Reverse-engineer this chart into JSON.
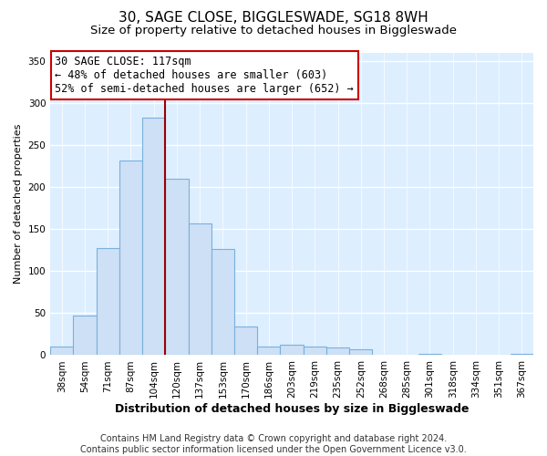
{
  "title": "30, SAGE CLOSE, BIGGLESWADE, SG18 8WH",
  "subtitle": "Size of property relative to detached houses in Biggleswade",
  "xlabel": "Distribution of detached houses by size in Biggleswade",
  "ylabel": "Number of detached properties",
  "footer_line1": "Contains HM Land Registry data © Crown copyright and database right 2024.",
  "footer_line2": "Contains public sector information licensed under the Open Government Licence v3.0.",
  "bin_labels": [
    "38sqm",
    "54sqm",
    "71sqm",
    "87sqm",
    "104sqm",
    "120sqm",
    "137sqm",
    "153sqm",
    "170sqm",
    "186sqm",
    "203sqm",
    "219sqm",
    "235sqm",
    "252sqm",
    "268sqm",
    "285sqm",
    "301sqm",
    "318sqm",
    "334sqm",
    "351sqm",
    "367sqm"
  ],
  "bar_heights": [
    10,
    47,
    127,
    231,
    283,
    210,
    157,
    126,
    34,
    10,
    12,
    10,
    9,
    7,
    0,
    0,
    2,
    0,
    0,
    0,
    2
  ],
  "bar_color": "#cde0f5",
  "bar_edge_color": "#7ab0dc",
  "vline_index": 4,
  "vline_color": "#990000",
  "annotation_title": "30 SAGE CLOSE: 117sqm",
  "annotation_line1": "← 48% of detached houses are smaller (603)",
  "annotation_line2": "52% of semi-detached houses are larger (652) →",
  "annotation_box_facecolor": "#ffffff",
  "annotation_box_edgecolor": "#cc0000",
  "ylim": [
    0,
    360
  ],
  "yticks": [
    0,
    50,
    100,
    150,
    200,
    250,
    300,
    350
  ],
  "fig_bg_color": "#ffffff",
  "plot_bg_color": "#ddeeff",
  "title_fontsize": 11,
  "subtitle_fontsize": 9.5,
  "xlabel_fontsize": 9,
  "ylabel_fontsize": 8,
  "tick_fontsize": 7.5,
  "annotation_fontsize": 8.5,
  "footer_fontsize": 7
}
